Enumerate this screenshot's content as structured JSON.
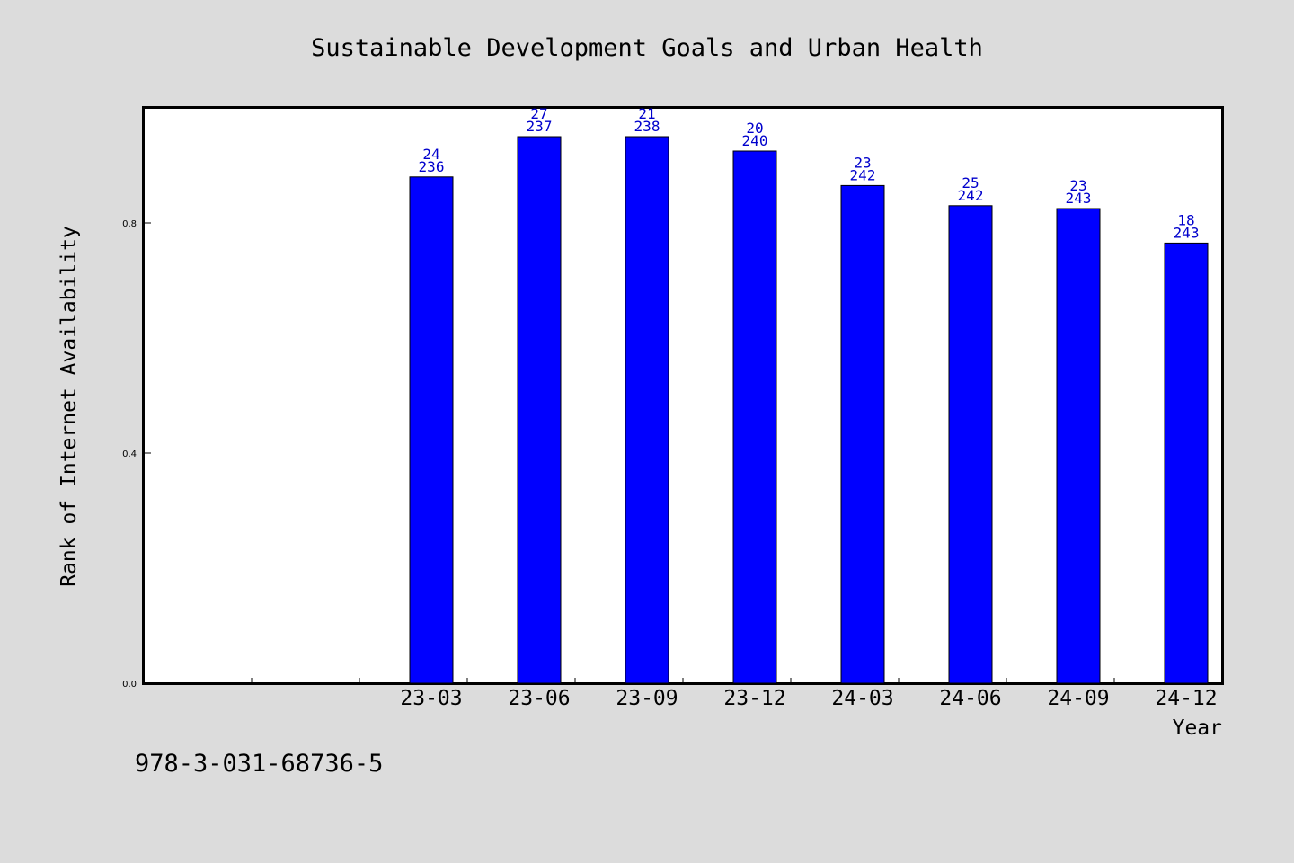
{
  "chart_data": {
    "type": "bar",
    "title": "Sustainable Development Goals and Urban Health",
    "xlabel": "Year",
    "ylabel": "Rank of Internet Availability",
    "ylim": [
      0,
      1.0
    ],
    "yticks": [
      0.0,
      0.4,
      0.8
    ],
    "ytick_labels": [
      "0.0",
      "0.4",
      "0.8"
    ],
    "grid": false,
    "bar_color": "#0000ff",
    "label_color": "#0000cc",
    "categories": [
      "",
      "",
      "23-03",
      "23-06",
      "23-09",
      "23-12",
      "24-03",
      "24-06",
      "24-09",
      "24-12"
    ],
    "values": [
      null,
      null,
      0.88,
      0.95,
      0.95,
      0.925,
      0.865,
      0.83,
      0.825,
      0.765
    ],
    "label_top": [
      "",
      "",
      "24",
      "27",
      "21",
      "20",
      "23",
      "25",
      "23",
      "18"
    ],
    "label_bottom": [
      "",
      "",
      "236",
      "237",
      "238",
      "240",
      "242",
      "242",
      "243",
      "243"
    ]
  },
  "footer": {
    "code": "978-3-031-68736-5"
  }
}
